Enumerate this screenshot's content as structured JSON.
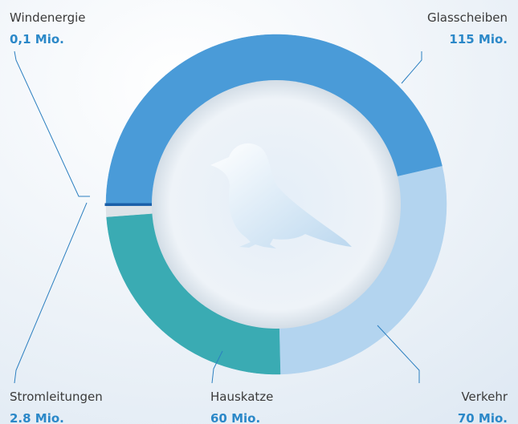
{
  "chart_data": {
    "type": "donut",
    "categories": [
      "Glasscheiben",
      "Verkehr",
      "Hauskatze",
      "Stromleitungen",
      "Windenergie"
    ],
    "values": [
      115,
      70,
      60,
      2.8,
      0.1
    ],
    "value_labels": [
      "115 Mio.",
      "70 Mio.",
      "60 Mio.",
      "2.8 Mio.",
      "0,1 Mio."
    ],
    "colors": [
      "#4a9bd8",
      "#b3d4ef",
      "#3aabb3",
      "#dde3e8",
      "#1a5fa8"
    ]
  }
}
